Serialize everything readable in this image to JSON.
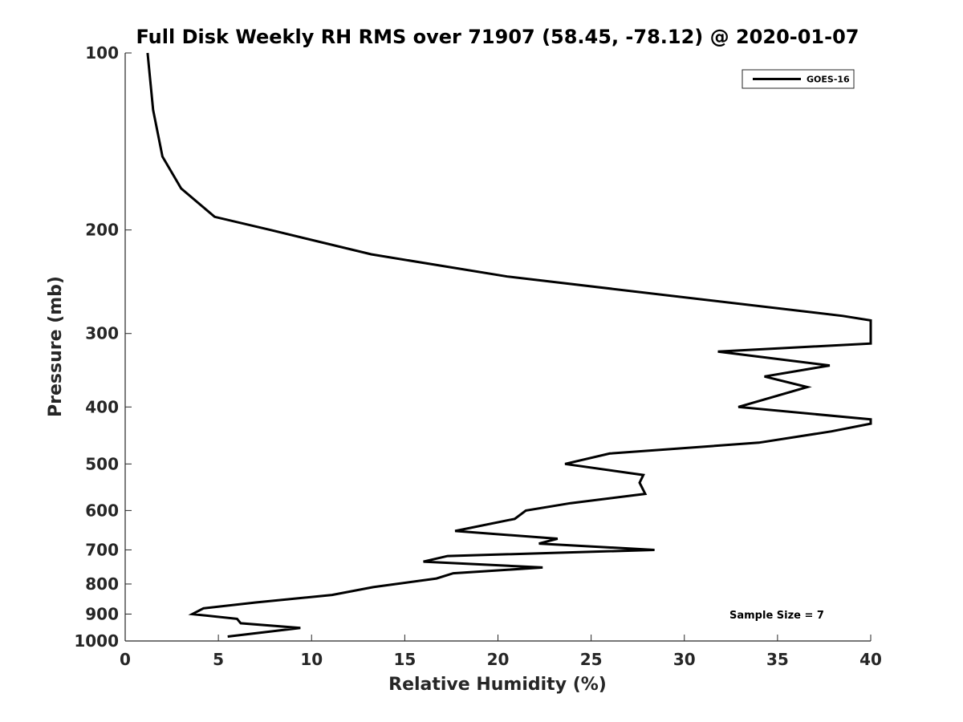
{
  "chart_data": {
    "type": "line",
    "title": "Full Disk Weekly RH RMS over 71907 (58.45, -78.12) @ 2020-01-07",
    "xlabel": "Relative Humidity (%)",
    "ylabel": "Pressure (mb)",
    "xlim": [
      0,
      40
    ],
    "ylim": [
      100,
      1000
    ],
    "yscale": "log",
    "y_reversed": true,
    "grid": false,
    "legend_position": "top-right",
    "x_ticks": [
      "0",
      "5",
      "10",
      "15",
      "20",
      "25",
      "30",
      "35",
      "40"
    ],
    "y_ticks": [
      "100",
      "200",
      "300",
      "400",
      "500",
      "600",
      "700",
      "800",
      "900",
      "1000"
    ],
    "annotation": "Sample Size = 7",
    "series": [
      {
        "name": "GOES-16",
        "color": "#000000",
        "x": [
          1.2,
          1.5,
          2.0,
          3.0,
          4.8,
          7.8,
          13.2,
          20.5,
          38.5,
          40,
          40,
          31.8,
          37.8,
          34.3,
          36.6,
          32.9,
          40,
          40,
          37.9,
          34.0,
          26.0,
          23.6,
          27.8,
          27.6,
          27.9,
          23.9,
          21.5,
          20.9,
          17.7,
          23.2,
          22.2,
          28.4,
          17.3,
          16.0,
          22.4,
          17.6,
          16.7,
          13.3,
          11.1,
          7.0,
          4.2,
          3.6,
          6.0,
          6.2,
          9.4,
          5.5
        ],
        "y": [
          100,
          125,
          150,
          170,
          190,
          200,
          220,
          240,
          280,
          285,
          312,
          322,
          340,
          355,
          370,
          400,
          420,
          427,
          440,
          460,
          480,
          500,
          522,
          538,
          562,
          583,
          600,
          620,
          650,
          670,
          683,
          700,
          717,
          733,
          750,
          767,
          783,
          810,
          835,
          860,
          880,
          900,
          917,
          933,
          950,
          983
        ]
      }
    ]
  }
}
